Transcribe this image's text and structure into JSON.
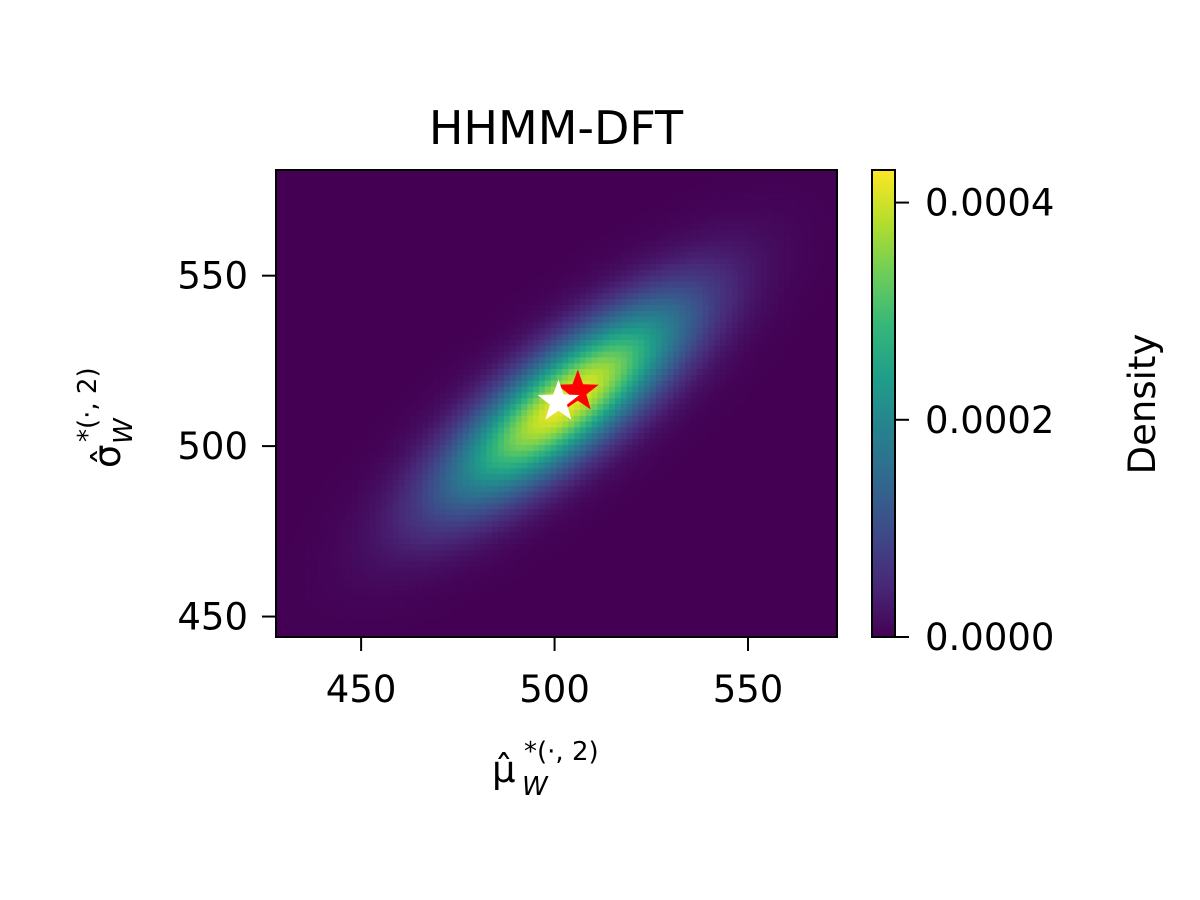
{
  "chart_data": {
    "type": "heatmap",
    "title": "HHMM-DFT",
    "xlabel": {
      "base": "μ̂",
      "sub": "W",
      "sup": "*(·, 2)"
    },
    "ylabel": {
      "base": "σ̂",
      "sub": "W",
      "sup": "*(·, 2)"
    },
    "xlim": [
      428,
      573
    ],
    "ylim": [
      444,
      581
    ],
    "xticks": [
      450,
      500,
      550
    ],
    "yticks": [
      450,
      500,
      550
    ],
    "xtick_labels": [
      "450",
      "500",
      "550"
    ],
    "ytick_labels": [
      "450",
      "500",
      "550"
    ],
    "colormap": "viridis",
    "density": {
      "peak": 0.00042,
      "mean": [
        503,
        513
      ],
      "sd_major": 27,
      "sd_minor": 9,
      "angle_deg": 43
    },
    "colorbar": {
      "label": "Density",
      "range": [
        0.0,
        0.00043
      ],
      "ticks": [
        0.0,
        0.0002,
        0.0004
      ],
      "tick_labels": [
        "0.0000",
        "0.0002",
        "0.0004"
      ]
    },
    "markers": [
      {
        "name": "red-star",
        "x": 506,
        "y": 516,
        "color": "#ff0000"
      },
      {
        "name": "white-star",
        "x": 501,
        "y": 513,
        "color": "#ffffff"
      }
    ]
  }
}
